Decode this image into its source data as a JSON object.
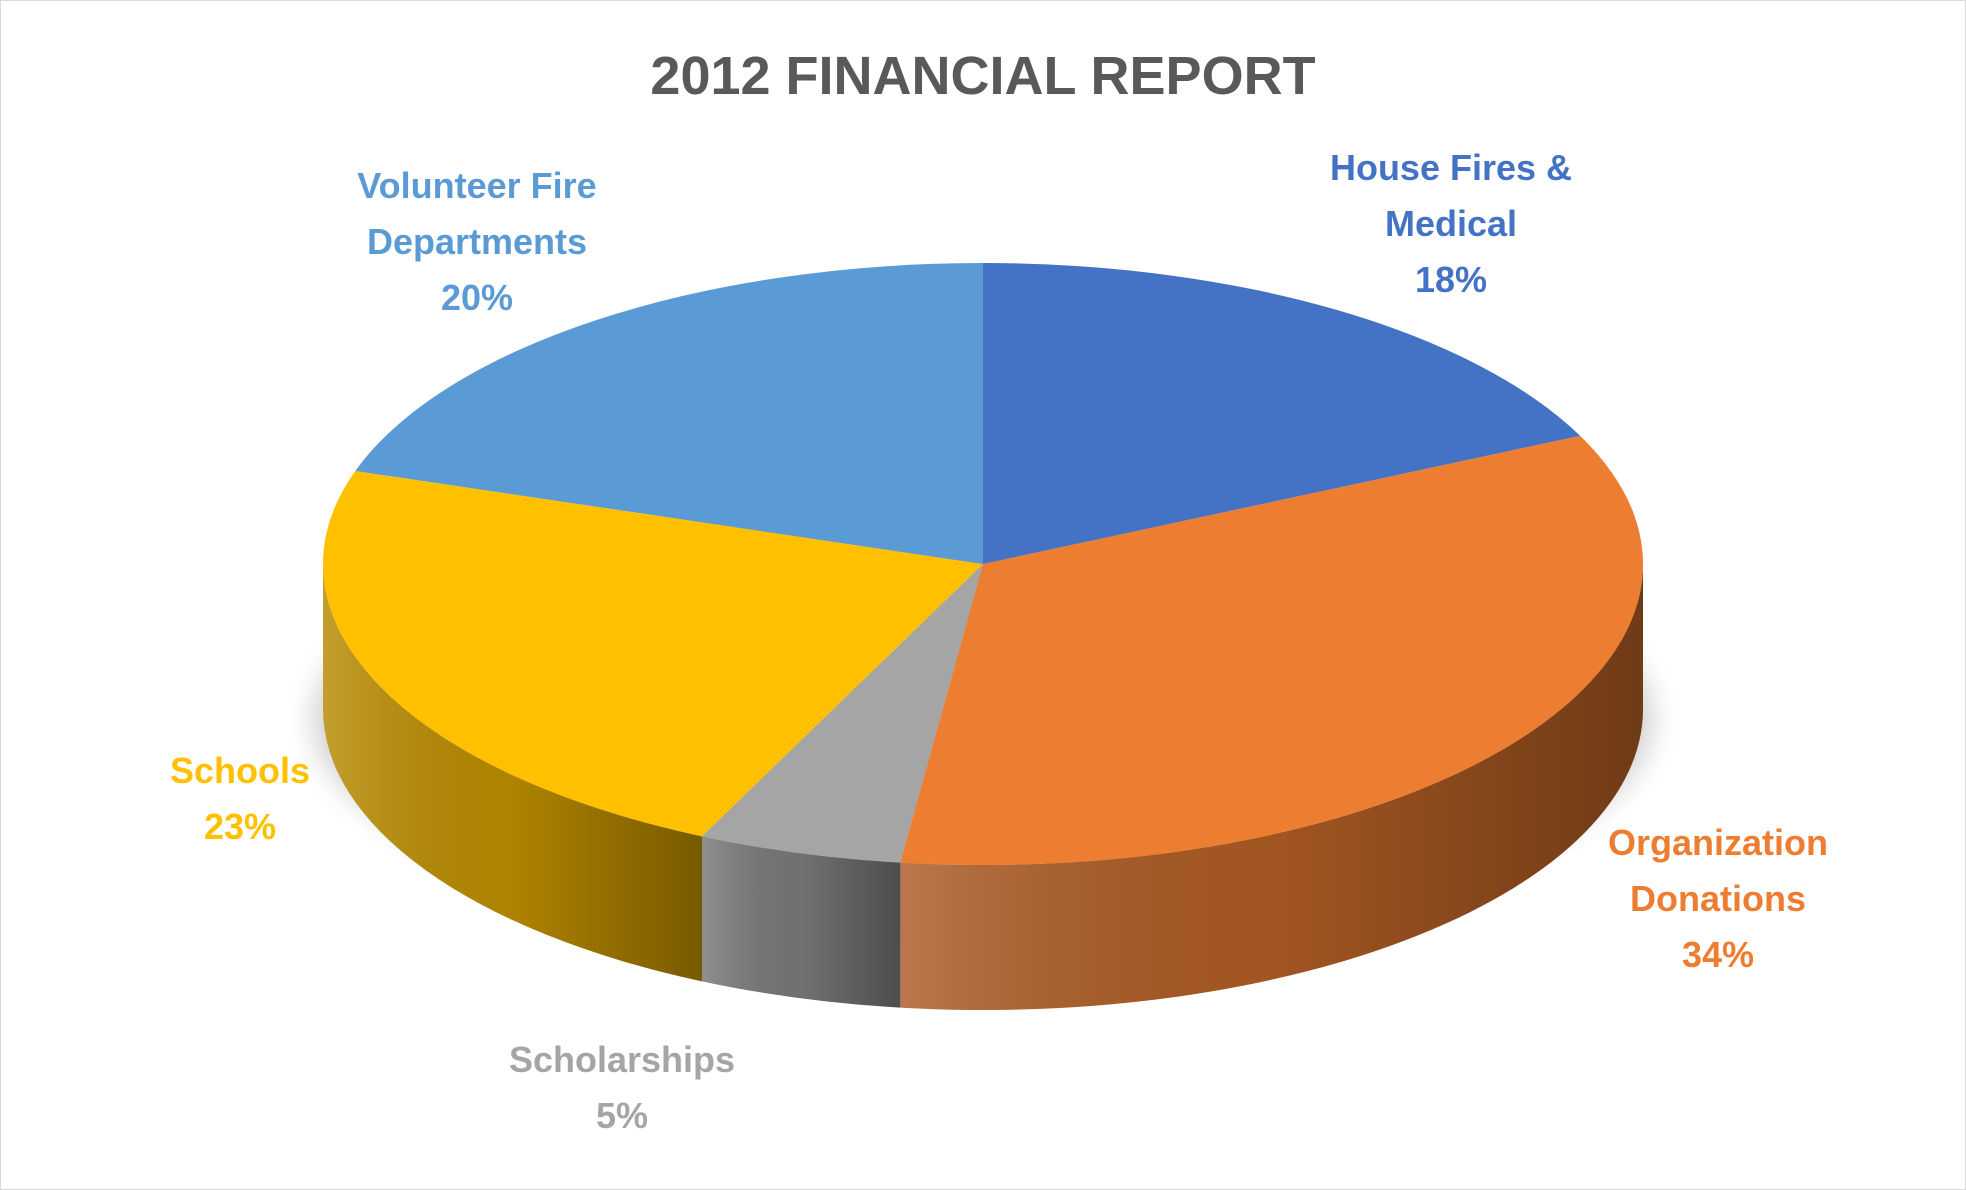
{
  "chart_data": {
    "type": "pie3d",
    "title": "2012 FINANCIAL REPORT",
    "categories": [
      "House Fires & Medical",
      "Organization Donations",
      "Scholarships",
      "Schools",
      "Volunteer Fire Departments"
    ],
    "values": [
      18,
      34,
      5,
      23,
      20
    ],
    "value_labels": [
      "18%",
      "34%",
      "5%",
      "23%",
      "20%"
    ],
    "colors": [
      "#4472c4",
      "#ed7d31",
      "#a5a5a5",
      "#ffc000",
      "#5b9bd5"
    ]
  }
}
